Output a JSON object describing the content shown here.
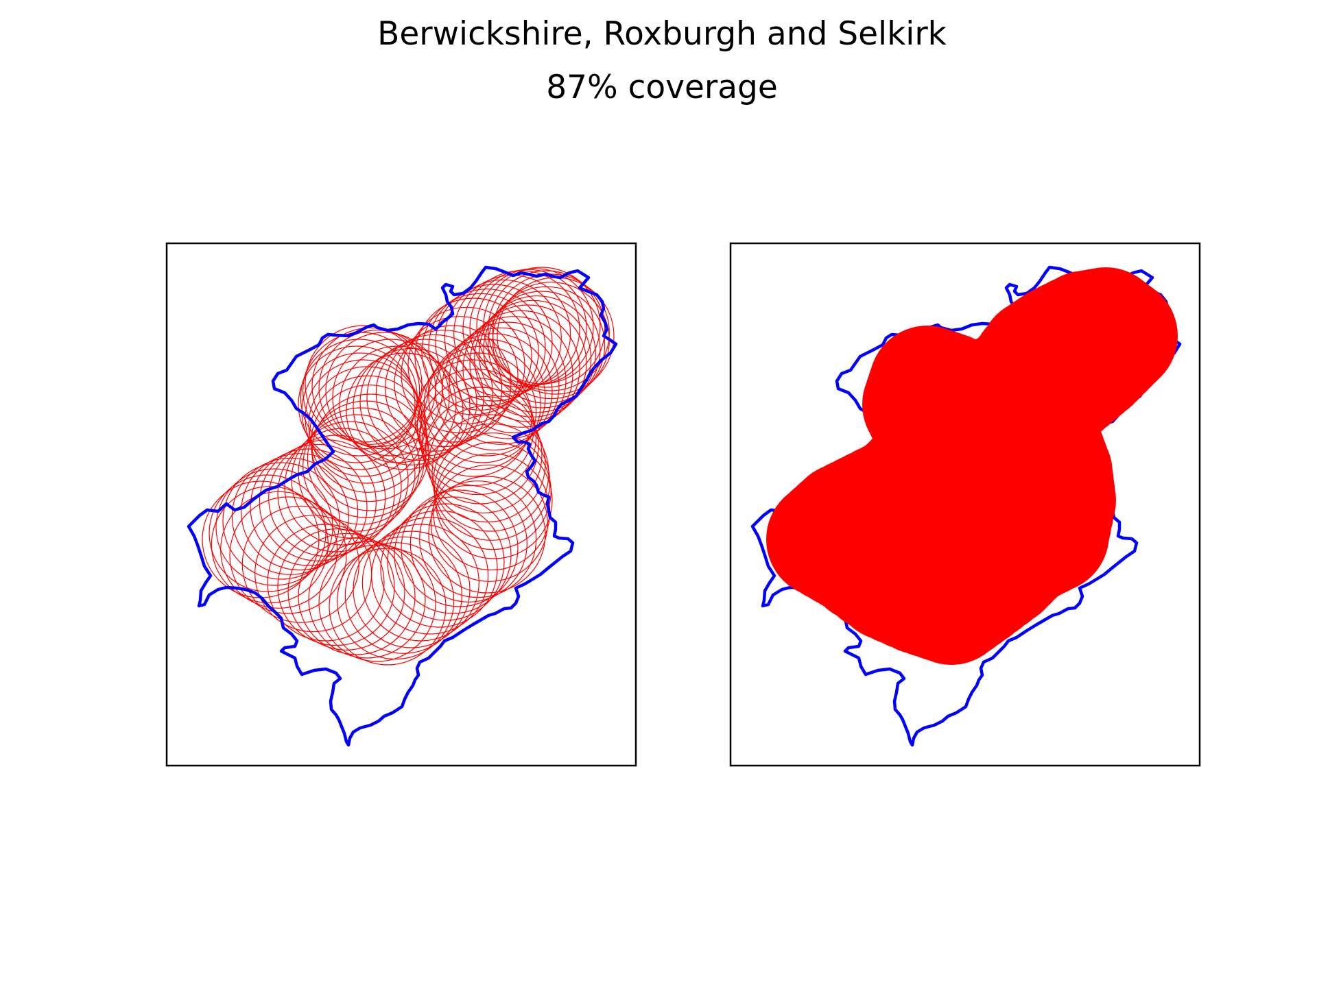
{
  "figure": {
    "title": "Berwickshire, Roxburgh and Selkirk",
    "subtitle": "87% coverage"
  },
  "panels": [
    {
      "id": "left",
      "content": "outline circles"
    },
    {
      "id": "right",
      "content": "filled union"
    }
  ],
  "colors": {
    "boundary": "#0000ff",
    "coverage": "#ff0000",
    "frame": "#000000",
    "background": "#ffffff"
  }
}
